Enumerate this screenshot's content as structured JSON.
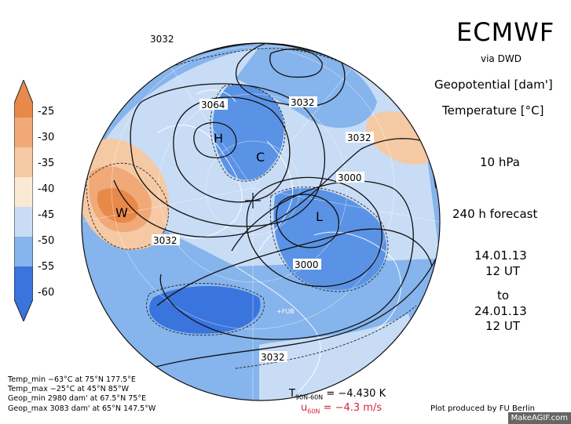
{
  "header": {
    "title": "ECMWF",
    "source": "via DWD",
    "field1": "Geopotential [dam']",
    "field2": "Temperature [°C]",
    "level": "10 hPa",
    "forecast": "240 h forecast",
    "init_date": "14.01.13",
    "init_time": "12 UT",
    "to": "to",
    "valid_date": "24.01.13",
    "valid_time": "12 UT"
  },
  "colorbar": {
    "labels": [
      "-25",
      "-30",
      "-35",
      "-40",
      "-45",
      "-50",
      "-55",
      "-60"
    ],
    "colors": [
      "#e8894a",
      "#f0a977",
      "#f5c9a4",
      "#fae9d4",
      "#c8dcf5",
      "#86b4ec",
      "#5a93e6",
      "#3a74dd"
    ]
  },
  "map": {
    "contour_labels": [
      "3032",
      "3032",
      "3064",
      "3032",
      "3000",
      "3032",
      "3000",
      "3032"
    ],
    "pressure_centers": [
      "H",
      "C",
      "W",
      "L"
    ],
    "station_label": "+FUB"
  },
  "stats": {
    "temp_min": "Temp_min −63°C at 75°N 177.5°E",
    "temp_max": "Temp_max −25°C at 45°N 85°W",
    "geop_min": "Geop_min 2980 dam' at 67.5°N 75°E",
    "geop_max": "Geop_max 3083 dam' at 65°N 147.5°W"
  },
  "means": {
    "t_label": "T",
    "t_sub": "90N-60N",
    "t_value": "= −4.430 K",
    "u_label": "u",
    "u_sub": "60N",
    "u_value": "= −4.3 m/s"
  },
  "credit": "Plot produced by FU Berlin",
  "watermark": "MakeAGIF.com"
}
